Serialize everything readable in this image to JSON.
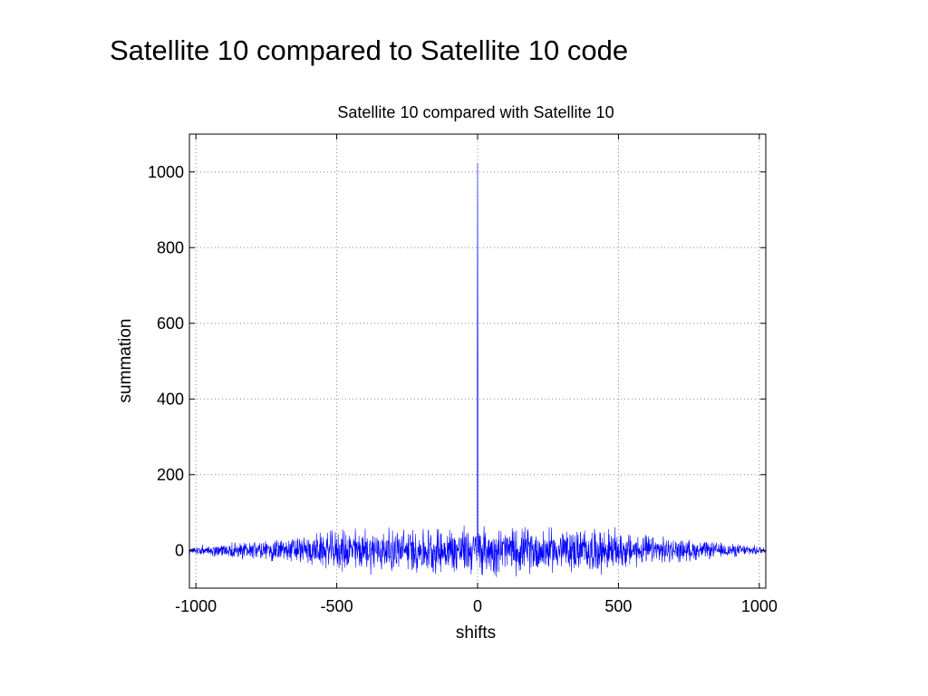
{
  "slide": {
    "title": "Satellite 10 compared to Satellite 10 code"
  },
  "colors": {
    "series": "#0000ff",
    "grid": "#888888",
    "axes": "#000000"
  },
  "chart_data": {
    "type": "line",
    "title": "Satellite 10 compared with Satellite 10",
    "xlabel": "shifts",
    "ylabel": "summation",
    "xlim": [
      -1023,
      1023
    ],
    "ylim": [
      -100,
      1100
    ],
    "xticks": [
      -1000,
      -500,
      0,
      500,
      1000
    ],
    "yticks": [
      0,
      200,
      400,
      600,
      800,
      1000
    ],
    "grid": true,
    "series": [
      {
        "style": "line",
        "x_range": [
          -1023,
          1023
        ],
        "peaks": [
          {
            "x": 0,
            "y": 1023
          },
          {
            "x": -1,
            "y": 511
          },
          {
            "x": 1,
            "y": 511
          }
        ],
        "envelope": [
          {
            "x": -1023,
            "y": 12
          },
          {
            "x": -800,
            "y": 28
          },
          {
            "x": -600,
            "y": 45
          },
          {
            "x": -450,
            "y": 68
          },
          {
            "x": -300,
            "y": 65
          },
          {
            "x": -100,
            "y": 72
          },
          {
            "x": 0,
            "y": 75
          },
          {
            "x": 100,
            "y": 72
          },
          {
            "x": 300,
            "y": 65
          },
          {
            "x": 450,
            "y": 68
          },
          {
            "x": 600,
            "y": 45
          },
          {
            "x": 800,
            "y": 28
          },
          {
            "x": 1023,
            "y": 12
          }
        ]
      }
    ]
  }
}
